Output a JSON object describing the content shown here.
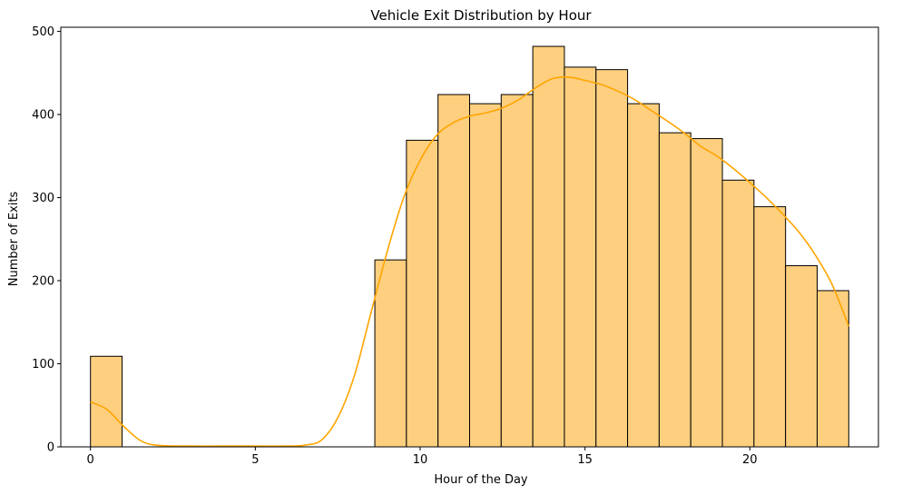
{
  "chart_data": {
    "type": "bar",
    "subtype": "histogram-with-kde",
    "title": "Vehicle Exit Distribution by Hour",
    "xlabel": "Hour of the Day",
    "ylabel": "Number of Exits",
    "xlim": [
      -0.9,
      23.9
    ],
    "ylim": [
      0,
      505
    ],
    "xticks": [
      0,
      5,
      10,
      15,
      20
    ],
    "yticks": [
      0,
      100,
      200,
      300,
      400,
      500
    ],
    "bin_edges": [
      0,
      0.9583,
      1.9167,
      2.875,
      3.8333,
      4.7917,
      5.75,
      6.7083,
      7.6667,
      8.625,
      9.5833,
      10.5417,
      11.5,
      12.4583,
      13.4167,
      14.375,
      15.3333,
      16.2917,
      17.25,
      18.2083,
      19.1667,
      20.125,
      21.0833,
      22.0417,
      23
    ],
    "values": [
      109,
      0,
      0,
      0,
      0,
      0,
      0,
      0,
      0,
      225,
      369,
      424,
      413,
      424,
      482,
      457,
      454,
      413,
      378,
      371,
      321,
      289,
      218,
      188
    ],
    "bar_color": "#fecf7f",
    "bar_edge_color": "#000000",
    "grid": false,
    "legend": false,
    "kde": {
      "color": "#ffa500",
      "x": [
        0,
        0.5,
        1,
        1.5,
        2,
        3,
        4,
        5,
        6,
        6.5,
        7,
        7.5,
        8,
        8.5,
        9,
        9.5,
        10,
        10.5,
        11,
        11.5,
        12,
        12.5,
        13,
        13.5,
        14,
        14.5,
        15,
        15.5,
        16,
        16.5,
        17,
        17.5,
        18,
        18.5,
        19,
        19.5,
        20,
        20.5,
        21,
        21.5,
        22,
        22.5,
        23
      ],
      "y": [
        54,
        45,
        25,
        8,
        2,
        1,
        1,
        1,
        1,
        2,
        8,
        35,
        85,
        160,
        235,
        300,
        345,
        375,
        390,
        398,
        402,
        408,
        418,
        432,
        443,
        445,
        441,
        436,
        428,
        418,
        405,
        392,
        378,
        362,
        350,
        335,
        318,
        300,
        280,
        258,
        230,
        195,
        145
      ]
    }
  }
}
